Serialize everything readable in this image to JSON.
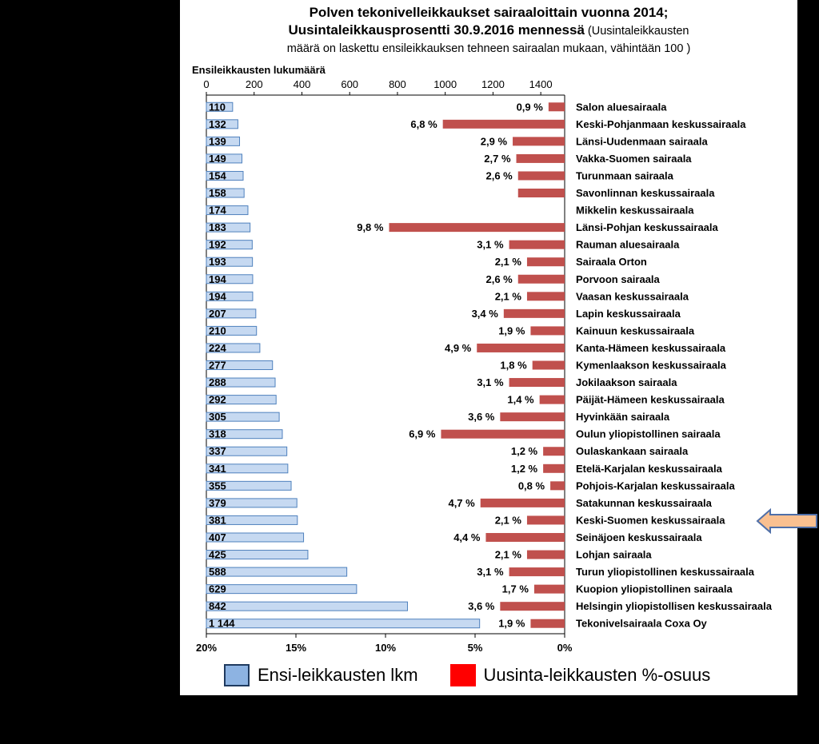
{
  "title": {
    "line1": "Polven tekonivelleikkaukset sairaaloittain vuonna 2014;",
    "line2_bold": "Uusintaleikkausprosentti 30.9.2016 mennessä",
    "line2_rest": " (Uusintaleikkausten",
    "line3": "määrä on laskettu ensileikkauksen tehneen sairaalan mukaan, vähintään 100 )"
  },
  "legend": {
    "first_label": "Ensi-leikkausten lkm",
    "revision_label": "Uusinta-leikkausten %-osuus"
  },
  "colors": {
    "first_fill": "#c6d9f1",
    "first_stroke": "#4f81bd",
    "revision_fill": "#c0504d",
    "legend_first": "#8db3e2",
    "legend_revision": "#ff0000",
    "arrow_fill": "#fac090",
    "arrow_stroke": "#4f6fa8"
  },
  "chart_data": {
    "type": "bar",
    "top_axis": {
      "label": "Ensileikkausten lukumäärä",
      "range": [
        0,
        1500
      ],
      "ticks": [
        "0",
        "200",
        "400",
        "600",
        "800",
        "1000",
        "1200",
        "1400"
      ],
      "tick_values": [
        0,
        200,
        400,
        600,
        800,
        1000,
        1200,
        1400
      ]
    },
    "bottom_axis": {
      "range": [
        20,
        0
      ],
      "ticks": [
        "20%",
        "15%",
        "10%",
        "5%",
        "0%"
      ],
      "tick_values": [
        20,
        15,
        10,
        5,
        0
      ]
    },
    "highlighted_category": "Keski-Suomen keskussairaala",
    "categories": [
      "Salon aluesairaala",
      "Keski-Pohjanmaan keskussairaala",
      "Länsi-Uudenmaan sairaala",
      "Vakka-Suomen sairaala",
      "Turunmaan sairaala",
      "Savonlinnan keskussairaala",
      "Mikkelin keskussairaala",
      "Länsi-Pohjan keskussairaala",
      "Rauman aluesairaala",
      "Sairaala Orton",
      "Porvoon sairaala",
      "Vaasan keskussairaala",
      "Lapin keskussairaala",
      "Kainuun keskussairaala",
      "Kanta-Hämeen keskussairaala",
      "Kymenlaakson keskussairaala",
      "Jokilaakson sairaala",
      "Päijät-Hämeen keskussairaala",
      "Hyvinkään sairaala",
      "Oulun yliopistollinen sairaala",
      "Oulaskankaan sairaala",
      "Etelä-Karjalan keskussairaala",
      "Pohjois-Karjalan keskussairaala",
      "Satakunnan keskussairaala",
      "Keski-Suomen keskussairaala",
      "Seinäjoen keskussairaala",
      "Lohjan sairaala",
      "Turun yliopistollinen keskussairaala",
      "Kuopion yliopistollinen sairaala",
      "Helsingin yliopistollisen keskussairaala",
      "Tekonivelsairaala Coxa Oy"
    ],
    "series": [
      {
        "name": "Ensi-leikkausten lkm",
        "values": [
          110,
          132,
          139,
          149,
          154,
          158,
          174,
          183,
          192,
          193,
          194,
          194,
          207,
          210,
          224,
          277,
          288,
          292,
          305,
          318,
          337,
          341,
          355,
          379,
          381,
          407,
          425,
          588,
          629,
          842,
          1144
        ],
        "labels": [
          "110",
          "132",
          "139",
          "149",
          "154",
          "158",
          "174",
          "183",
          "192",
          "193",
          "194",
          "194",
          "207",
          "210",
          "224",
          "277",
          "288",
          "292",
          "305",
          "318",
          "337",
          "341",
          "355",
          "379",
          "381",
          "407",
          "425",
          "588",
          "629",
          "842",
          "1 144"
        ]
      },
      {
        "name": "Uusinta-leikkausten %-osuus",
        "values": [
          0.9,
          6.8,
          2.9,
          2.7,
          2.6,
          2.6,
          0,
          9.8,
          3.1,
          2.1,
          2.6,
          2.1,
          3.4,
          1.9,
          4.9,
          1.8,
          3.1,
          1.4,
          3.6,
          6.9,
          1.2,
          1.2,
          0.8,
          4.7,
          2.1,
          4.4,
          2.1,
          3.1,
          1.7,
          3.6,
          1.9
        ],
        "labels": [
          "0,9 %",
          "6,8 %",
          "2,9 %",
          "2,7 %",
          "2,6 %",
          "",
          "",
          "9,8 %",
          "3,1 %",
          "2,1 %",
          "2,6 %",
          "2,1 %",
          "3,4 %",
          "1,9 %",
          "4,9 %",
          "1,8 %",
          "3,1 %",
          "1,4 %",
          "3,6 %",
          "6,9 %",
          "1,2 %",
          "1,2 %",
          "0,8 %",
          "4,7 %",
          "2,1 %",
          "4,4 %",
          "2,1 %",
          "3,1 %",
          "1,7 %",
          "3,6 %",
          "1,9 %"
        ]
      }
    ]
  }
}
